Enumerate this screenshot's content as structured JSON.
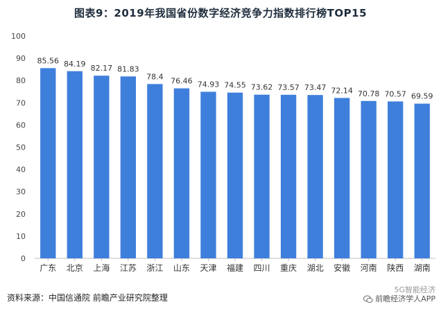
{
  "chart_data": {
    "type": "bar",
    "title": "图表9：2019年我国省份数字经济竞争力指数排行榜TOP15",
    "categories": [
      "广东",
      "北京",
      "上海",
      "江苏",
      "浙江",
      "山东",
      "天津",
      "福建",
      "四川",
      "重庆",
      "湖北",
      "安徽",
      "河南",
      "陕西",
      "湖南"
    ],
    "values": [
      85.56,
      84.19,
      82.17,
      81.83,
      78.4,
      76.46,
      74.93,
      74.55,
      73.62,
      73.57,
      73.47,
      72.14,
      70.78,
      70.57,
      69.59
    ],
    "value_labels": [
      "85.56",
      "84.19",
      "82.17",
      "81.83",
      "78.4",
      "76.46",
      "74.93",
      "74.55",
      "73.62",
      "73.57",
      "73.47",
      "72.14",
      "70.78",
      "70.57",
      "69.59"
    ],
    "ylim": [
      0,
      100
    ],
    "yticks": [
      0,
      10,
      20,
      30,
      40,
      50,
      60,
      70,
      80,
      90,
      100
    ],
    "xlabel": "",
    "ylabel": "",
    "grid": false,
    "bar_color": "#3f7fdc"
  },
  "footer": {
    "source": "资料来源：中国信通院 前瞻产业研究院整理",
    "watermark_line1": "5G智能经济",
    "watermark_line2": "前瞻经济学人APP",
    "watermark_icon": "wechat-icon"
  }
}
